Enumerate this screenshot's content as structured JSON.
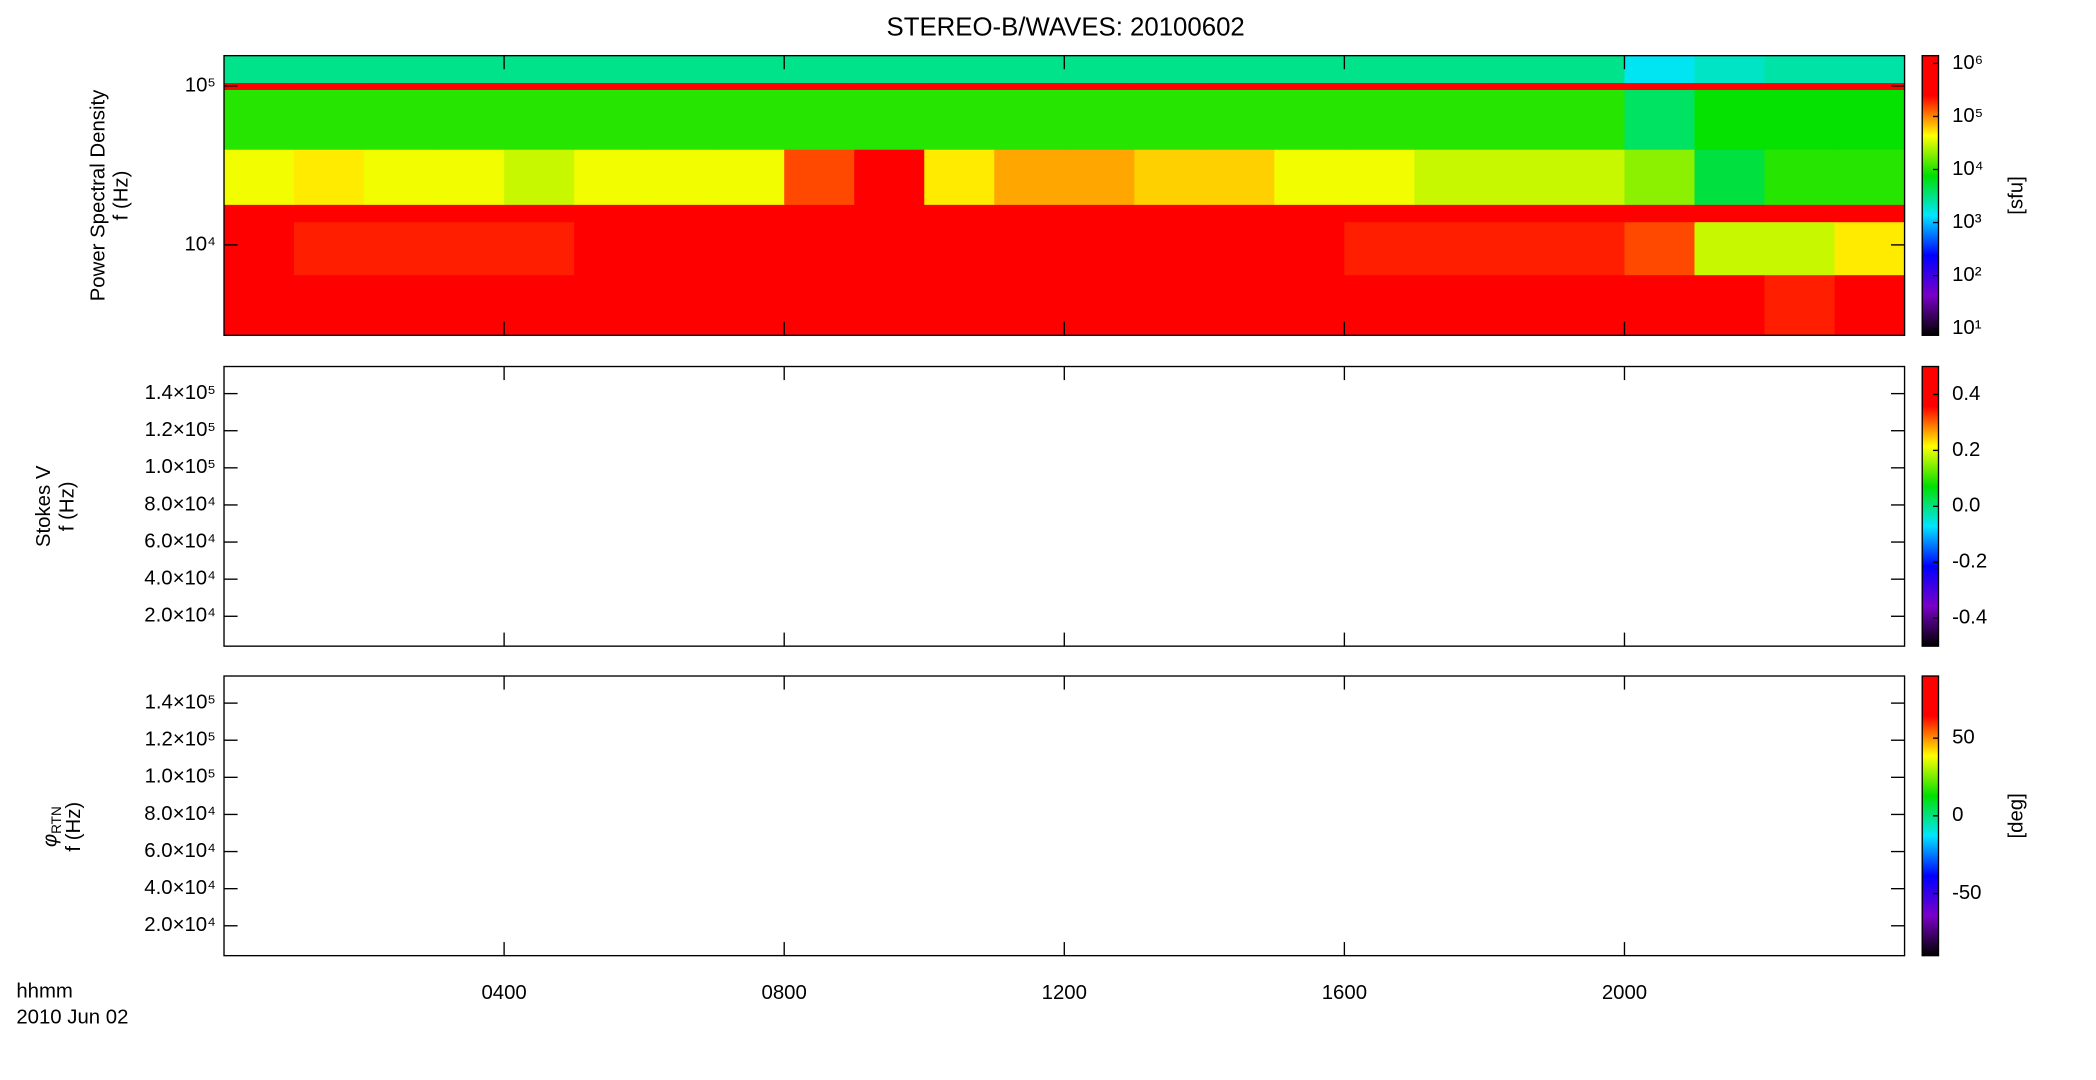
{
  "title": "STEREO-B/WAVES: 20100602",
  "x_label": "hhmm",
  "x_sublabel": "2010 Jun 02",
  "chart_data": [
    {
      "type": "heatmap",
      "y_label": [
        "Power Spectral Density",
        "f (Hz)"
      ],
      "ylog": true,
      "ylim": [
        2700,
        155000
      ],
      "yticks": [
        {
          "value": 10000,
          "label": "10⁴"
        },
        {
          "value": 100000,
          "label": "10⁵"
        }
      ],
      "xlim": [
        0,
        24
      ],
      "xticks": [
        {
          "value": 4,
          "label": "0400"
        },
        {
          "value": 8,
          "label": "0800"
        },
        {
          "value": 12,
          "label": "1200"
        },
        {
          "value": 16,
          "label": "1600"
        },
        {
          "value": 20,
          "label": "2000"
        }
      ],
      "x_bins": [
        0,
        1,
        2,
        3,
        4,
        5,
        6,
        7,
        8,
        9,
        10,
        11,
        12,
        13,
        14,
        15,
        16,
        17,
        18,
        19,
        20,
        21,
        22,
        23,
        24
      ],
      "y_bins": [
        2700,
        6500,
        14000,
        18000,
        40000,
        95000,
        105000,
        155000
      ],
      "z": [
        [
          1000000,
          1000000,
          1000000,
          1000000,
          1000000,
          1000000,
          1000000,
          1000000,
          1000000,
          1000000,
          1000000,
          1000000,
          1000000,
          1000000,
          1000000,
          1000000,
          1000000,
          1000000,
          1000000,
          1000000,
          1000000,
          300000,
          200000,
          400000
        ],
        [
          300000,
          200000,
          200000,
          200000,
          200000,
          300000,
          300000,
          300000,
          400000,
          500000,
          300000,
          400000,
          400000,
          400000,
          300000,
          300000,
          200000,
          200000,
          200000,
          200000,
          150000,
          30000,
          30000,
          50000
        ],
        [
          800000,
          800000,
          800000,
          800000,
          800000,
          800000,
          800000,
          800000,
          800000,
          800000,
          800000,
          800000,
          800000,
          800000,
          800000,
          800000,
          800000,
          800000,
          800000,
          800000,
          800000,
          500000,
          500000,
          500000
        ],
        [
          40000,
          50000,
          40000,
          40000,
          30000,
          40000,
          40000,
          40000,
          150000,
          300000,
          50000,
          80000,
          80000,
          60000,
          60000,
          40000,
          40000,
          30000,
          30000,
          30000,
          20000,
          5000,
          10000,
          10000
        ],
        [
          10000,
          10000,
          10000,
          10000,
          10000,
          10000,
          10000,
          10000,
          10000,
          10000,
          10000,
          10000,
          10000,
          10000,
          10000,
          10000,
          10000,
          10000,
          10000,
          10000,
          4000,
          8000,
          8000,
          8000
        ],
        [
          500000,
          500000,
          500000,
          500000,
          500000,
          500000,
          500000,
          500000,
          500000,
          500000,
          500000,
          500000,
          500000,
          500000,
          500000,
          500000,
          500000,
          500000,
          500000,
          500000,
          500000,
          500000,
          500000,
          500000
        ],
        [
          3000,
          3000,
          3000,
          3000,
          3000,
          3000,
          3000,
          3000,
          3000,
          3000,
          3000,
          3000,
          3000,
          3000,
          3000,
          3000,
          3000,
          3000,
          3000,
          3000,
          1500,
          2000,
          2500,
          2500
        ]
      ],
      "colormap": [
        "#000000",
        "#7a00c8",
        "#0000ff",
        "#00e5ff",
        "#00e000",
        "#ffff00",
        "#ff0000",
        "#ff0000"
      ],
      "colorbar": {
        "log": true,
        "lim": [
          7.5,
          1400000
        ],
        "label": "[sfu]",
        "ticks": [
          {
            "value": 10,
            "label": "10¹"
          },
          {
            "value": 100,
            "label": "10²"
          },
          {
            "value": 1000,
            "label": "10³"
          },
          {
            "value": 10000,
            "label": "10⁴"
          },
          {
            "value": 100000,
            "label": "10⁵"
          },
          {
            "value": 1000000,
            "label": "10⁶"
          }
        ]
      }
    },
    {
      "type": "heatmap",
      "y_label": [
        "Stokes V",
        "f (Hz)"
      ],
      "ylog": false,
      "ylim": [
        3900,
        154600
      ],
      "yticks": [
        {
          "value": 20000,
          "label": "2.0×10⁴"
        },
        {
          "value": 40000,
          "label": "4.0×10⁴"
        },
        {
          "value": 60000,
          "label": "6.0×10⁴"
        },
        {
          "value": 80000,
          "label": "8.0×10⁴"
        },
        {
          "value": 100000,
          "label": "1.0×10⁵"
        },
        {
          "value": 120000,
          "label": "1.2×10⁵"
        },
        {
          "value": 140000,
          "label": "1.4×10⁵"
        }
      ],
      "xlim": [
        0,
        24
      ],
      "xticks": [
        {
          "value": 4,
          "label": "0400"
        },
        {
          "value": 8,
          "label": "0800"
        },
        {
          "value": 12,
          "label": "1200"
        },
        {
          "value": 16,
          "label": "1600"
        },
        {
          "value": 20,
          "label": "2000"
        }
      ],
      "colormap": [
        "#000000",
        "#7a00c8",
        "#0000ff",
        "#00e5ff",
        "#00e000",
        "#ffff00",
        "#ff0000",
        "#ff0000"
      ],
      "colorbar": {
        "log": false,
        "lim": [
          -0.5,
          0.5
        ],
        "ticks": [
          -0.4,
          -0.2,
          {
            "value": 0,
            "label": "0.0"
          },
          0.2,
          0.4
        ]
      }
    },
    {
      "type": "heatmap",
      "y_label": [
        "φ",
        "RTN",
        "f (Hz)"
      ],
      "ylog": false,
      "ylim": [
        3900,
        154600
      ],
      "yticks": [
        {
          "value": 20000,
          "label": "2.0×10⁴"
        },
        {
          "value": 40000,
          "label": "4.0×10⁴"
        },
        {
          "value": 60000,
          "label": "6.0×10⁴"
        },
        {
          "value": 80000,
          "label": "8.0×10⁴"
        },
        {
          "value": 100000,
          "label": "1.0×10⁵"
        },
        {
          "value": 120000,
          "label": "1.2×10⁵"
        },
        {
          "value": 140000,
          "label": "1.4×10⁵"
        }
      ],
      "xlim": [
        0,
        24
      ],
      "xticks": [
        {
          "value": 4,
          "label": "0400"
        },
        {
          "value": 8,
          "label": "0800"
        },
        {
          "value": 12,
          "label": "1200"
        },
        {
          "value": 16,
          "label": "1600"
        },
        {
          "value": 20,
          "label": "2000"
        }
      ],
      "colormap": [
        "#000000",
        "#7a00c8",
        "#0000ff",
        "#00e5ff",
        "#00e000",
        "#ffff00",
        "#ff0000",
        "#ff0000"
      ],
      "colorbar": {
        "log": false,
        "lim": [
          -90,
          90
        ],
        "label": "[deg]",
        "ticks": [
          -50,
          0,
          50
        ]
      }
    }
  ]
}
